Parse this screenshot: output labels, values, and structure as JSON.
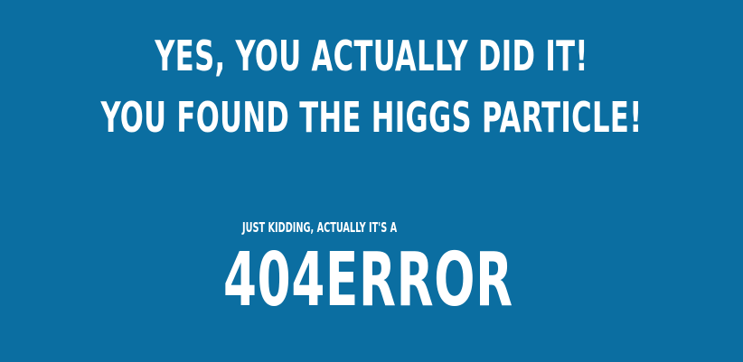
{
  "headline": {
    "line1": "YES, YOU ACTUALLY DID IT!",
    "line2": "YOU FOUND THE HIGGS PARTICLE!"
  },
  "error": {
    "subnote": "JUST KIDDING, ACTUALLY IT'S A",
    "code": "404ERROR"
  },
  "colors": {
    "background": "#0b6ea1",
    "text": "#ffffff"
  }
}
